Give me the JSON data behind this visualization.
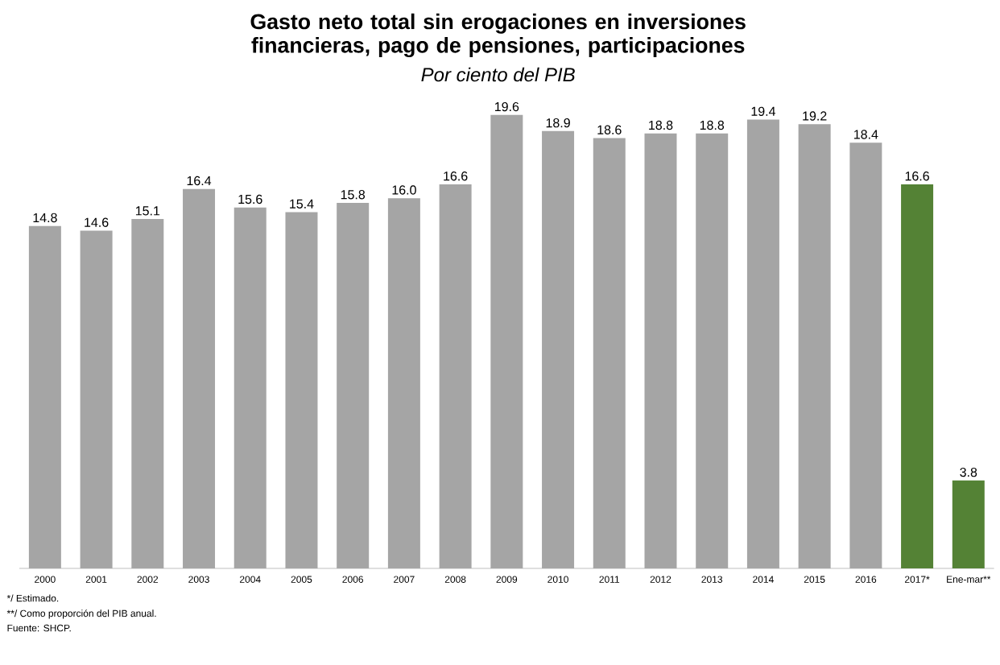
{
  "chart_data": {
    "type": "bar",
    "title": "Gasto neto total sin erogaciones en inversiones financieras, pago de pensiones, participaciones",
    "subtitle": "Por ciento del PIB",
    "categories": [
      "2000",
      "2001",
      "2002",
      "2003",
      "2004",
      "2005",
      "2006",
      "2007",
      "2008",
      "2009",
      "2010",
      "2011",
      "2012",
      "2013",
      "2014",
      "2015",
      "2016",
      "2017*",
      "Ene-mar**"
    ],
    "values": [
      14.8,
      14.6,
      15.1,
      16.4,
      15.6,
      15.4,
      15.8,
      16.0,
      16.6,
      19.6,
      18.9,
      18.6,
      18.8,
      18.8,
      19.4,
      19.2,
      18.4,
      16.6,
      3.8
    ],
    "colors": [
      "#a5a5a5",
      "#a5a5a5",
      "#a5a5a5",
      "#a5a5a5",
      "#a5a5a5",
      "#a5a5a5",
      "#a5a5a5",
      "#a5a5a5",
      "#a5a5a5",
      "#a5a5a5",
      "#a5a5a5",
      "#a5a5a5",
      "#a5a5a5",
      "#a5a5a5",
      "#a5a5a5",
      "#a5a5a5",
      "#a5a5a5",
      "#548235",
      "#548235"
    ],
    "value_labels": [
      "14.8",
      "14.6",
      "15.1",
      "16.4",
      "15.6",
      "15.4",
      "15.8",
      "16.0",
      "16.6",
      "19.6",
      "18.9",
      "18.6",
      "18.8",
      "18.8",
      "19.4",
      "19.2",
      "18.4",
      "16.6",
      "3.8"
    ],
    "annotations": [
      "*/ Estimado.",
      "**/ Como proporción del PIB anual.",
      "Fuente: SHCP."
    ]
  }
}
